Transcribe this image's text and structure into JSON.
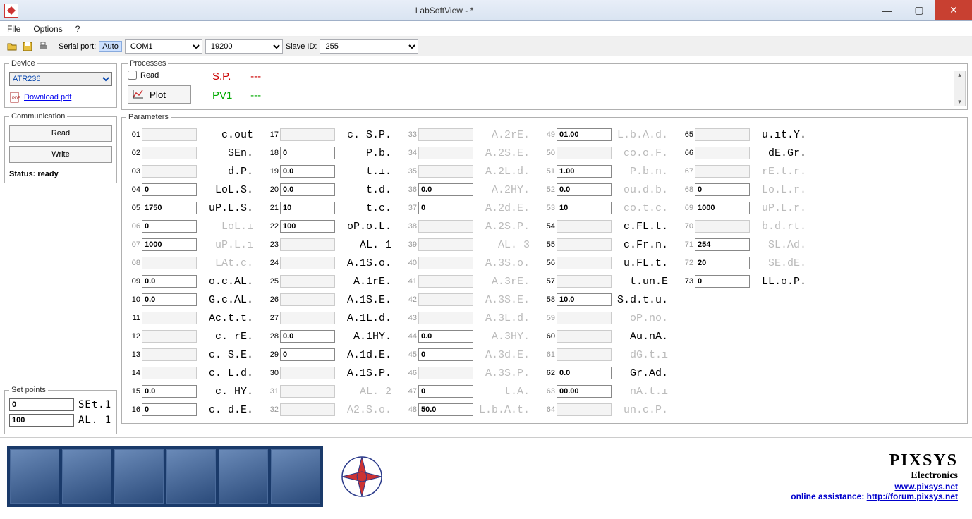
{
  "window": {
    "title": "LabSoftView -  *"
  },
  "menu": {
    "file": "File",
    "options": "Options",
    "help": "?"
  },
  "toolbar": {
    "serial_port_label": "Serial port:",
    "auto": "Auto",
    "com": "COM1",
    "baud": "19200",
    "slave_label": "Slave ID:",
    "slave": "255"
  },
  "device": {
    "legend": "Device",
    "selected": "ATR236",
    "download": "Download pdf"
  },
  "processes": {
    "legend": "Processes",
    "read": "Read",
    "plot": "Plot",
    "sp_label": "S.P.",
    "sp_val": "---",
    "pv_label": "PV1",
    "pv_val": "---"
  },
  "comm": {
    "legend": "Communication",
    "read": "Read",
    "write": "Write",
    "status_label": "Status:",
    "status_val": "ready"
  },
  "setpoints": {
    "legend": "Set points",
    "rows": [
      {
        "val": "0",
        "lbl": "SEt.1"
      },
      {
        "val": "100",
        "lbl": "AL. 1"
      }
    ]
  },
  "parameters": {
    "legend": "Parameters",
    "cols": [
      [
        {
          "n": "01",
          "v": "",
          "l": "c.out",
          "dim": false,
          "en": false
        },
        {
          "n": "02",
          "v": "",
          "l": "SEn.",
          "dim": false,
          "en": false
        },
        {
          "n": "03",
          "v": "",
          "l": "d.P.",
          "dim": false,
          "en": false
        },
        {
          "n": "04",
          "v": "0",
          "l": "LoL.S.",
          "dim": false,
          "en": true
        },
        {
          "n": "05",
          "v": "1750",
          "l": "uP.L.S.",
          "dim": false,
          "en": true
        },
        {
          "n": "06",
          "v": "0",
          "l": "LoL.ı",
          "dim": true,
          "en": true
        },
        {
          "n": "07",
          "v": "1000",
          "l": "uP.L.ı",
          "dim": true,
          "en": true
        },
        {
          "n": "08",
          "v": "",
          "l": "LAt.c.",
          "dim": true,
          "en": false
        },
        {
          "n": "09",
          "v": "0.0",
          "l": "o.c.AL.",
          "dim": false,
          "en": true
        },
        {
          "n": "10",
          "v": "0.0",
          "l": "G.c.AL.",
          "dim": false,
          "en": true
        },
        {
          "n": "11",
          "v": "",
          "l": "Ac.t.t.",
          "dim": false,
          "en": false
        },
        {
          "n": "12",
          "v": "",
          "l": "c. rE.",
          "dim": false,
          "en": false
        },
        {
          "n": "13",
          "v": "",
          "l": "c. S.E.",
          "dim": false,
          "en": false
        },
        {
          "n": "14",
          "v": "",
          "l": "c. L.d.",
          "dim": false,
          "en": false
        },
        {
          "n": "15",
          "v": "0.0",
          "l": "c. HY.",
          "dim": false,
          "en": true
        },
        {
          "n": "16",
          "v": "0",
          "l": "c. d.E.",
          "dim": false,
          "en": true
        }
      ],
      [
        {
          "n": "17",
          "v": "",
          "l": "c. S.P.",
          "dim": false,
          "en": false
        },
        {
          "n": "18",
          "v": "0",
          "l": "P.b.",
          "dim": false,
          "en": true
        },
        {
          "n": "19",
          "v": "0.0",
          "l": "t.ı.",
          "dim": false,
          "en": true
        },
        {
          "n": "20",
          "v": "0.0",
          "l": "t.d.",
          "dim": false,
          "en": true
        },
        {
          "n": "21",
          "v": "10",
          "l": "t.c.",
          "dim": false,
          "en": true
        },
        {
          "n": "22",
          "v": "100",
          "l": "oP.o.L.",
          "dim": false,
          "en": true
        },
        {
          "n": "23",
          "v": "",
          "l": "AL. 1",
          "dim": false,
          "en": false
        },
        {
          "n": "24",
          "v": "",
          "l": "A.1S.o.",
          "dim": false,
          "en": false
        },
        {
          "n": "25",
          "v": "",
          "l": "A.1rE.",
          "dim": false,
          "en": false
        },
        {
          "n": "26",
          "v": "",
          "l": "A.1S.E.",
          "dim": false,
          "en": false
        },
        {
          "n": "27",
          "v": "",
          "l": "A.1L.d.",
          "dim": false,
          "en": false
        },
        {
          "n": "28",
          "v": "0.0",
          "l": "A.1HY.",
          "dim": false,
          "en": true
        },
        {
          "n": "29",
          "v": "0",
          "l": "A.1d.E.",
          "dim": false,
          "en": true
        },
        {
          "n": "30",
          "v": "",
          "l": "A.1S.P.",
          "dim": false,
          "en": false
        },
        {
          "n": "31",
          "v": "",
          "l": "AL. 2",
          "dim": true,
          "en": false
        },
        {
          "n": "32",
          "v": "",
          "l": "A2.S.o.",
          "dim": true,
          "en": false
        }
      ],
      [
        {
          "n": "33",
          "v": "",
          "l": "A.2rE.",
          "dim": true,
          "en": false
        },
        {
          "n": "34",
          "v": "",
          "l": "A.2S.E.",
          "dim": true,
          "en": false
        },
        {
          "n": "35",
          "v": "",
          "l": "A.2L.d.",
          "dim": true,
          "en": false
        },
        {
          "n": "36",
          "v": "0.0",
          "l": "A.2HY.",
          "dim": true,
          "en": true
        },
        {
          "n": "37",
          "v": "0",
          "l": "A.2d.E.",
          "dim": true,
          "en": true
        },
        {
          "n": "38",
          "v": "",
          "l": "A.2S.P.",
          "dim": true,
          "en": false
        },
        {
          "n": "39",
          "v": "",
          "l": "AL. 3",
          "dim": true,
          "en": false
        },
        {
          "n": "40",
          "v": "",
          "l": "A.3S.o.",
          "dim": true,
          "en": false
        },
        {
          "n": "41",
          "v": "",
          "l": "A.3rE.",
          "dim": true,
          "en": false
        },
        {
          "n": "42",
          "v": "",
          "l": "A.3S.E.",
          "dim": true,
          "en": false
        },
        {
          "n": "43",
          "v": "",
          "l": "A.3L.d.",
          "dim": true,
          "en": false
        },
        {
          "n": "44",
          "v": "0.0",
          "l": "A.3HY.",
          "dim": true,
          "en": true
        },
        {
          "n": "45",
          "v": "0",
          "l": "A.3d.E.",
          "dim": true,
          "en": true
        },
        {
          "n": "46",
          "v": "",
          "l": "A.3S.P.",
          "dim": true,
          "en": false
        },
        {
          "n": "47",
          "v": "0",
          "l": "t.A.",
          "dim": true,
          "en": true
        },
        {
          "n": "48",
          "v": "50.0",
          "l": "L.b.A.t.",
          "dim": true,
          "en": true
        }
      ],
      [
        {
          "n": "49",
          "v": "01.00",
          "l": "L.b.A.d.",
          "dim": true,
          "en": true
        },
        {
          "n": "50",
          "v": "",
          "l": "co.o.F.",
          "dim": true,
          "en": false
        },
        {
          "n": "51",
          "v": "1.00",
          "l": "P.b.n.",
          "dim": true,
          "en": true
        },
        {
          "n": "52",
          "v": "0.0",
          "l": "ou.d.b.",
          "dim": true,
          "en": true
        },
        {
          "n": "53",
          "v": "10",
          "l": "co.t.c.",
          "dim": true,
          "en": true
        },
        {
          "n": "54",
          "v": "",
          "l": "c.FL.t.",
          "dim": false,
          "en": false
        },
        {
          "n": "55",
          "v": "",
          "l": "c.Fr.n.",
          "dim": false,
          "en": false
        },
        {
          "n": "56",
          "v": "",
          "l": "u.FL.t.",
          "dim": false,
          "en": false
        },
        {
          "n": "57",
          "v": "",
          "l": "t.un.E",
          "dim": false,
          "en": false
        },
        {
          "n": "58",
          "v": "10.0",
          "l": "S.d.t.u.",
          "dim": false,
          "en": true
        },
        {
          "n": "59",
          "v": "",
          "l": "oP.no.",
          "dim": true,
          "en": false
        },
        {
          "n": "60",
          "v": "",
          "l": "Au.nA.",
          "dim": false,
          "en": false
        },
        {
          "n": "61",
          "v": "",
          "l": "dG.t.ı",
          "dim": true,
          "en": false
        },
        {
          "n": "62",
          "v": "0.0",
          "l": "Gr.Ad.",
          "dim": false,
          "en": true
        },
        {
          "n": "63",
          "v": "00.00",
          "l": "nA.t.ı",
          "dim": true,
          "en": true
        },
        {
          "n": "64",
          "v": "",
          "l": "un.c.P.",
          "dim": true,
          "en": false
        }
      ],
      [
        {
          "n": "65",
          "v": "",
          "l": "u.ıt.Y.",
          "dim": false,
          "en": false
        },
        {
          "n": "66",
          "v": "",
          "l": "dE.Gr.",
          "dim": false,
          "en": false
        },
        {
          "n": "67",
          "v": "",
          "l": "rE.t.r.",
          "dim": true,
          "en": false
        },
        {
          "n": "68",
          "v": "0",
          "l": "Lo.L.r.",
          "dim": true,
          "en": true
        },
        {
          "n": "69",
          "v": "1000",
          "l": "uP.L.r.",
          "dim": true,
          "en": true
        },
        {
          "n": "70",
          "v": "",
          "l": "b.d.rt.",
          "dim": true,
          "en": false
        },
        {
          "n": "71",
          "v": "254",
          "l": "SL.Ad.",
          "dim": true,
          "en": true
        },
        {
          "n": "72",
          "v": "20",
          "l": "SE.dE.",
          "dim": true,
          "en": true
        },
        {
          "n": "73",
          "v": "0",
          "l": "LL.o.P.",
          "dim": false,
          "en": true
        }
      ]
    ]
  },
  "footer": {
    "brand": "PIXSYS",
    "sub": "Electronics",
    "url": "www.pixsys.net",
    "assist_label": "online assistance: ",
    "assist_url": "http://forum.pixsys.net"
  }
}
